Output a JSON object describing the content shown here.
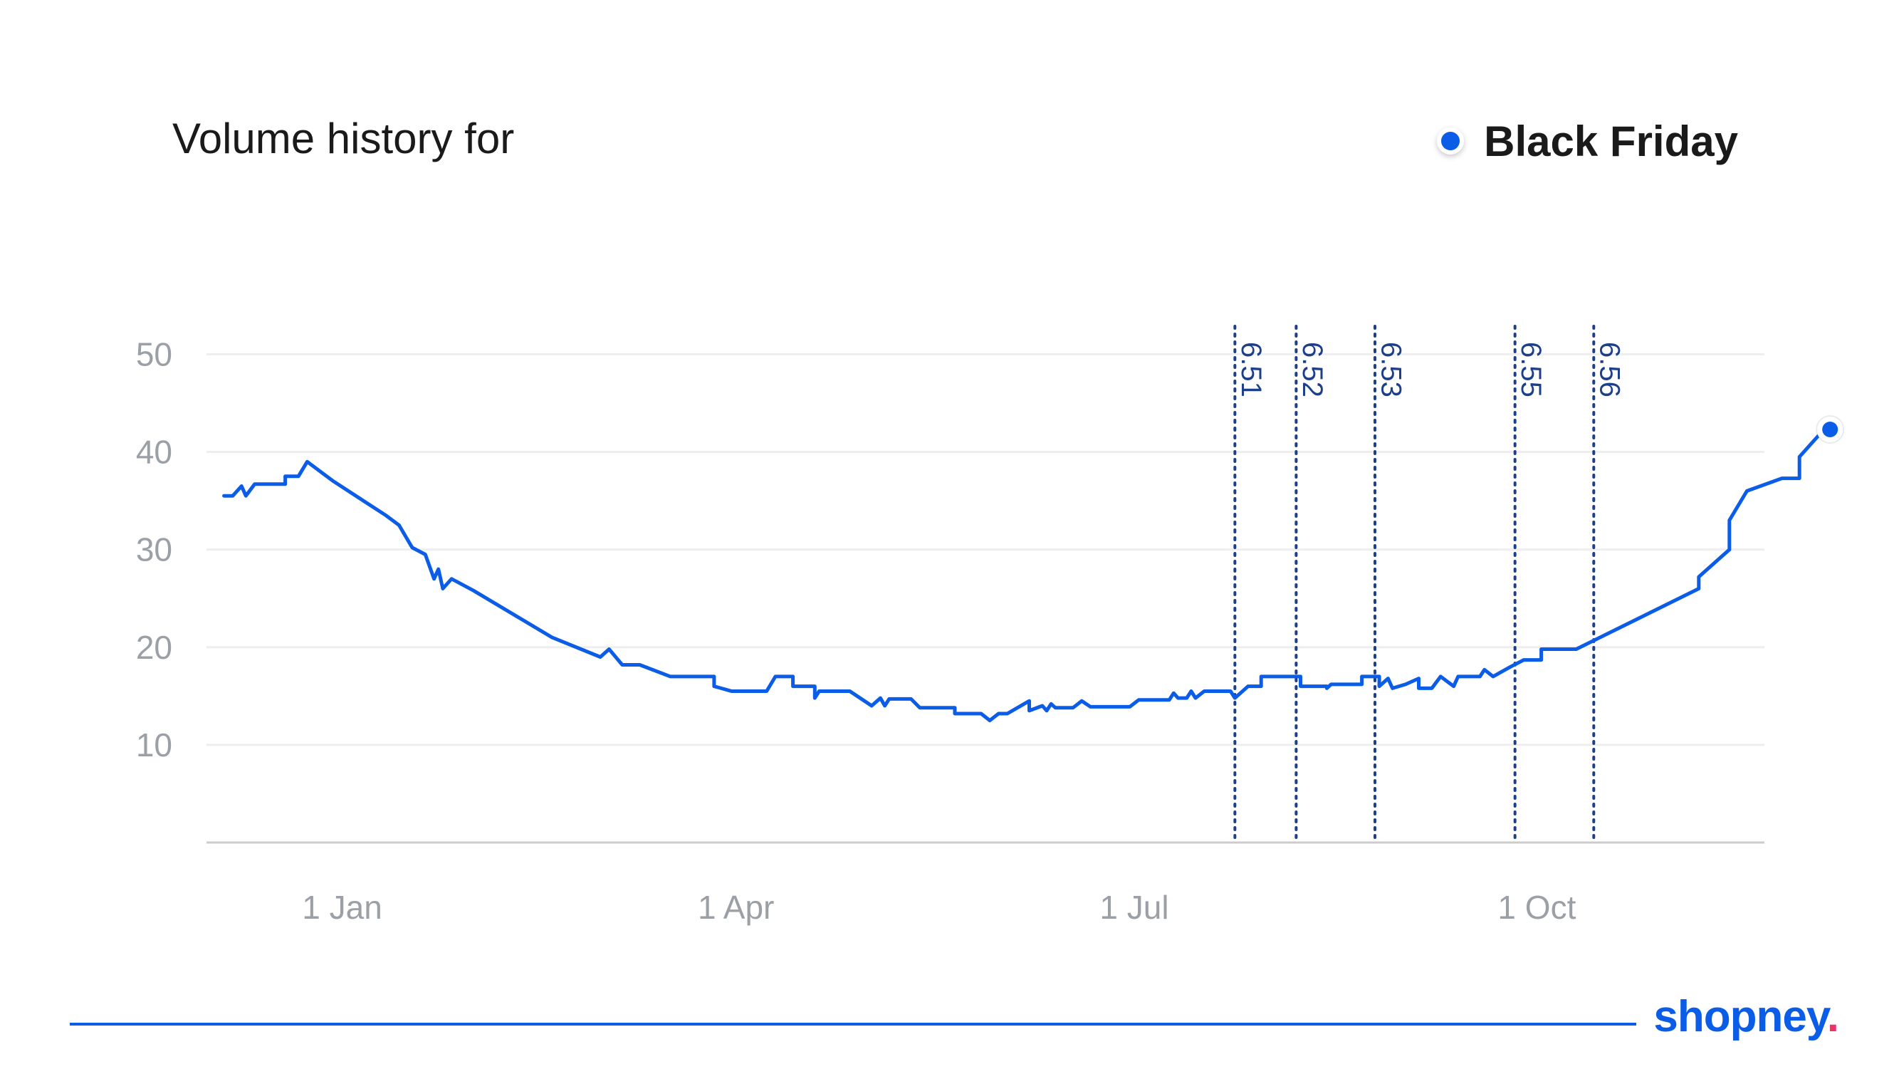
{
  "header": {
    "title": "Volume history for",
    "legend_label": "Black Friday"
  },
  "brand": {
    "name": "shopney",
    "dot": "."
  },
  "colors": {
    "line": "#0b5ce6",
    "release_line": "#1d3f8a",
    "grid": "#eeeeee",
    "axis": "#cccccc",
    "tick_text": "#9aa0a6",
    "brand": "#0b5ce6",
    "brand_dot": "#e8336b"
  },
  "chart_data": {
    "type": "line",
    "title": "Volume history for",
    "legend": [
      "Black Friday"
    ],
    "legend_placement": "top-right",
    "grid": true,
    "x_type": "date",
    "xlim": [
      "2021-12-01",
      "2022-11-22"
    ],
    "xticks": [
      {
        "date": "2022-01-01",
        "label": "1 Jan"
      },
      {
        "date": "2022-04-01",
        "label": "1 Apr"
      },
      {
        "date": "2022-07-01",
        "label": "1 Jul"
      },
      {
        "date": "2022-10-01",
        "label": "1 Oct"
      }
    ],
    "ylim": [
      0,
      52
    ],
    "yticks": [
      10,
      20,
      30,
      40,
      50
    ],
    "series": [
      {
        "name": "Black Friday",
        "points": [
          [
            "2021-12-05",
            35.5
          ],
          [
            "2021-12-07",
            35.5
          ],
          [
            "2021-12-09",
            36.5
          ],
          [
            "2021-12-10",
            35.5
          ],
          [
            "2021-12-12",
            36.7
          ],
          [
            "2021-12-19",
            36.7
          ],
          [
            "2021-12-19",
            37.5
          ],
          [
            "2021-12-22",
            37.5
          ],
          [
            "2021-12-24",
            39.0
          ],
          [
            "2021-12-30",
            37.0
          ],
          [
            "2022-01-11",
            33.5
          ],
          [
            "2022-01-14",
            32.5
          ],
          [
            "2022-01-17",
            30.2
          ],
          [
            "2022-01-20",
            29.5
          ],
          [
            "2022-01-22",
            27.0
          ],
          [
            "2022-01-23",
            28.0
          ],
          [
            "2022-01-24",
            26.0
          ],
          [
            "2022-01-26",
            27.0
          ],
          [
            "2022-01-31",
            25.8
          ],
          [
            "2022-02-18",
            21.0
          ],
          [
            "2022-03-01",
            19.0
          ],
          [
            "2022-03-03",
            19.8
          ],
          [
            "2022-03-06",
            18.2
          ],
          [
            "2022-03-10",
            18.2
          ],
          [
            "2022-03-17",
            17.0
          ],
          [
            "2022-03-27",
            17.0
          ],
          [
            "2022-03-27",
            16.0
          ],
          [
            "2022-03-31",
            15.5
          ],
          [
            "2022-04-08",
            15.5
          ],
          [
            "2022-04-10",
            17.0
          ],
          [
            "2022-04-14",
            17.0
          ],
          [
            "2022-04-14",
            16.0
          ],
          [
            "2022-04-19",
            16.0
          ],
          [
            "2022-04-19",
            14.8
          ],
          [
            "2022-04-20",
            15.5
          ],
          [
            "2022-04-27",
            15.5
          ],
          [
            "2022-05-02",
            14.0
          ],
          [
            "2022-05-04",
            14.8
          ],
          [
            "2022-05-05",
            14.0
          ],
          [
            "2022-05-06",
            14.7
          ],
          [
            "2022-05-11",
            14.7
          ],
          [
            "2022-05-13",
            13.8
          ],
          [
            "2022-05-21",
            13.8
          ],
          [
            "2022-05-21",
            13.2
          ],
          [
            "2022-05-27",
            13.2
          ],
          [
            "2022-05-29",
            12.5
          ],
          [
            "2022-05-31",
            13.2
          ],
          [
            "2022-06-02",
            13.2
          ],
          [
            "2022-06-07",
            14.5
          ],
          [
            "2022-06-07",
            13.5
          ],
          [
            "2022-06-10",
            14.0
          ],
          [
            "2022-06-11",
            13.5
          ],
          [
            "2022-06-12",
            14.2
          ],
          [
            "2022-06-13",
            13.8
          ],
          [
            "2022-06-17",
            13.8
          ],
          [
            "2022-06-19",
            14.5
          ],
          [
            "2022-06-21",
            13.9
          ],
          [
            "2022-06-30",
            13.9
          ],
          [
            "2022-07-02",
            14.6
          ],
          [
            "2022-07-09",
            14.6
          ],
          [
            "2022-07-10",
            15.3
          ],
          [
            "2022-07-11",
            14.8
          ],
          [
            "2022-07-13",
            14.8
          ],
          [
            "2022-07-14",
            15.5
          ],
          [
            "2022-07-15",
            14.8
          ],
          [
            "2022-07-17",
            15.5
          ],
          [
            "2022-07-23",
            15.5
          ],
          [
            "2022-07-24",
            14.8
          ],
          [
            "2022-07-27",
            16.0
          ],
          [
            "2022-07-30",
            16.0
          ],
          [
            "2022-07-30",
            17.0
          ],
          [
            "2022-08-08",
            17.0
          ],
          [
            "2022-08-08",
            16.0
          ],
          [
            "2022-08-14",
            16.0
          ],
          [
            "2022-08-14",
            15.8
          ],
          [
            "2022-08-15",
            16.2
          ],
          [
            "2022-08-22",
            16.2
          ],
          [
            "2022-08-22",
            17.0
          ],
          [
            "2022-08-26",
            17.0
          ],
          [
            "2022-08-26",
            16.0
          ],
          [
            "2022-08-28",
            16.8
          ],
          [
            "2022-08-29",
            15.8
          ],
          [
            "2022-09-01",
            16.2
          ],
          [
            "2022-09-04",
            16.8
          ],
          [
            "2022-09-04",
            15.8
          ],
          [
            "2022-09-07",
            15.8
          ],
          [
            "2022-09-09",
            17.0
          ],
          [
            "2022-09-12",
            16.0
          ],
          [
            "2022-09-13",
            17.0
          ],
          [
            "2022-09-18",
            17.0
          ],
          [
            "2022-09-19",
            17.7
          ],
          [
            "2022-09-21",
            17.0
          ],
          [
            "2022-09-25",
            18.0
          ],
          [
            "2022-09-28",
            18.7
          ],
          [
            "2022-10-02",
            18.7
          ],
          [
            "2022-10-02",
            19.8
          ],
          [
            "2022-10-10",
            19.8
          ],
          [
            "2022-11-07",
            26.0
          ],
          [
            "2022-11-07",
            27.2
          ],
          [
            "2022-11-14",
            30.0
          ],
          [
            "2022-11-14",
            33.0
          ],
          [
            "2022-11-18",
            36.0
          ],
          [
            "2022-11-26",
            37.3
          ],
          [
            "2022-11-30",
            37.3
          ],
          [
            "2022-11-30",
            39.5
          ],
          [
            "2022-12-04",
            41.5
          ],
          [
            "2022-12-05",
            42.0
          ]
        ],
        "end_marker": [
          "2022-12-07",
          42.3
        ]
      }
    ],
    "annotations": [
      {
        "date": "2022-07-24",
        "label": "6.51"
      },
      {
        "date": "2022-08-07",
        "label": "6.52"
      },
      {
        "date": "2022-08-25",
        "label": "6.53"
      },
      {
        "date": "2022-09-26",
        "label": "6.55"
      },
      {
        "date": "2022-10-14",
        "label": "6.56"
      }
    ]
  }
}
